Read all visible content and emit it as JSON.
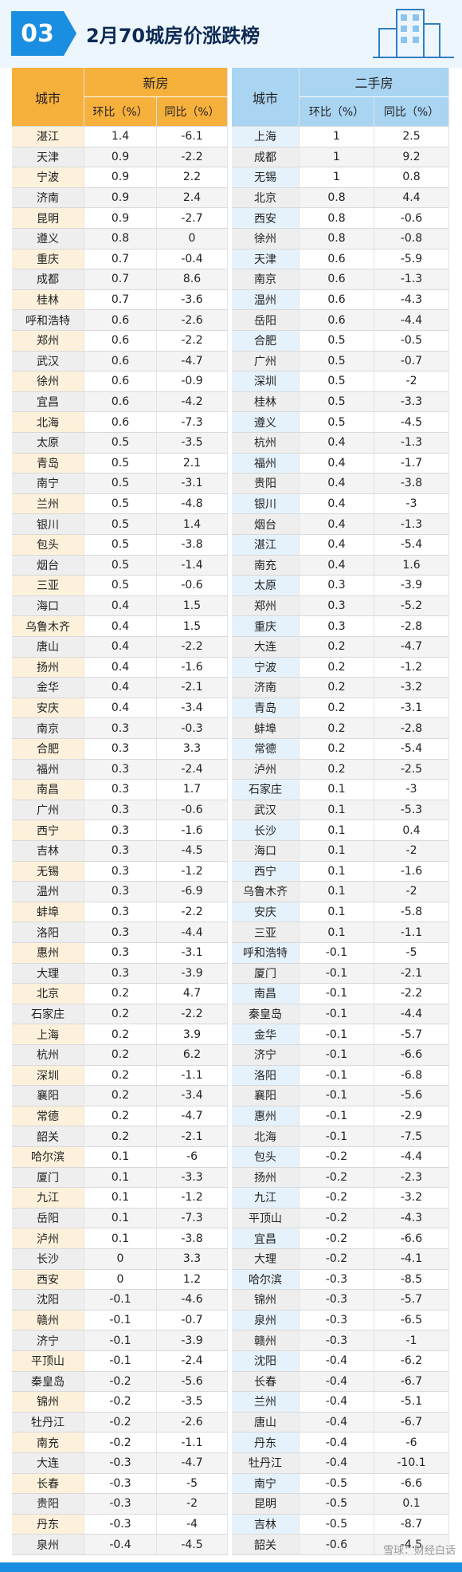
{
  "header": {
    "number": "03",
    "title": "2月70城房价涨跌榜"
  },
  "table": {
    "new_house": {
      "title": "新房",
      "city_header": "城市",
      "columns": [
        "环比（%）",
        "同比（%）"
      ],
      "rows": [
        [
          "湛江",
          1.4,
          -6.1
        ],
        [
          "天津",
          0.9,
          -2.2
        ],
        [
          "宁波",
          0.9,
          2.2
        ],
        [
          "济南",
          0.9,
          2.4
        ],
        [
          "昆明",
          0.9,
          -2.7
        ],
        [
          "遵义",
          0.8,
          0
        ],
        [
          "重庆",
          0.7,
          -0.4
        ],
        [
          "成都",
          0.7,
          8.6
        ],
        [
          "桂林",
          0.7,
          -3.6
        ],
        [
          "呼和浩特",
          0.6,
          -2.6
        ],
        [
          "郑州",
          0.6,
          -2.2
        ],
        [
          "武汉",
          0.6,
          -4.7
        ],
        [
          "徐州",
          0.6,
          -0.9
        ],
        [
          "宜昌",
          0.6,
          -4.2
        ],
        [
          "北海",
          0.6,
          -7.3
        ],
        [
          "太原",
          0.5,
          -3.5
        ],
        [
          "青岛",
          0.5,
          2.1
        ],
        [
          "南宁",
          0.5,
          -3.1
        ],
        [
          "兰州",
          0.5,
          -4.8
        ],
        [
          "银川",
          0.5,
          1.4
        ],
        [
          "包头",
          0.5,
          -3.8
        ],
        [
          "烟台",
          0.5,
          -1.4
        ],
        [
          "三亚",
          0.5,
          -0.6
        ],
        [
          "海口",
          0.4,
          1.5
        ],
        [
          "乌鲁木齐",
          0.4,
          1.5
        ],
        [
          "唐山",
          0.4,
          -2.2
        ],
        [
          "扬州",
          0.4,
          -1.6
        ],
        [
          "金华",
          0.4,
          -2.1
        ],
        [
          "安庆",
          0.4,
          -3.4
        ],
        [
          "南京",
          0.3,
          -0.3
        ],
        [
          "合肥",
          0.3,
          3.3
        ],
        [
          "福州",
          0.3,
          -2.4
        ],
        [
          "南昌",
          0.3,
          1.7
        ],
        [
          "广州",
          0.3,
          -0.6
        ],
        [
          "西宁",
          0.3,
          -1.6
        ],
        [
          "吉林",
          0.3,
          -4.5
        ],
        [
          "无锡",
          0.3,
          -1.2
        ],
        [
          "温州",
          0.3,
          -6.9
        ],
        [
          "蚌埠",
          0.3,
          -2.2
        ],
        [
          "洛阳",
          0.3,
          -4.4
        ],
        [
          "惠州",
          0.3,
          -3.1
        ],
        [
          "大理",
          0.3,
          -3.9
        ],
        [
          "北京",
          0.2,
          4.7
        ],
        [
          "石家庄",
          0.2,
          -2.2
        ],
        [
          "上海",
          0.2,
          3.9
        ],
        [
          "杭州",
          0.2,
          6.2
        ],
        [
          "深圳",
          0.2,
          -1.1
        ],
        [
          "襄阳",
          0.2,
          -3.4
        ],
        [
          "常德",
          0.2,
          -4.7
        ],
        [
          "韶关",
          0.2,
          -2.1
        ],
        [
          "哈尔滨",
          0.1,
          -6
        ],
        [
          "厦门",
          0.1,
          -3.3
        ],
        [
          "九江",
          0.1,
          -1.2
        ],
        [
          "岳阳",
          0.1,
          -7.3
        ],
        [
          "泸州",
          0.1,
          -3.8
        ],
        [
          "长沙",
          0,
          3.3
        ],
        [
          "西安",
          0,
          1.2
        ],
        [
          "沈阳",
          -0.1,
          -4.6
        ],
        [
          "赣州",
          -0.1,
          -0.7
        ],
        [
          "济宁",
          -0.1,
          -3.9
        ],
        [
          "平顶山",
          -0.1,
          -2.4
        ],
        [
          "秦皇岛",
          -0.2,
          -5.6
        ],
        [
          "锦州",
          -0.2,
          -3.5
        ],
        [
          "牡丹江",
          -0.2,
          -2.6
        ],
        [
          "南充",
          -0.2,
          -1.1
        ],
        [
          "大连",
          -0.3,
          -4.7
        ],
        [
          "长春",
          -0.3,
          -5
        ],
        [
          "贵阳",
          -0.3,
          -2
        ],
        [
          "丹东",
          -0.3,
          -4
        ],
        [
          "泉州",
          -0.4,
          -4.5
        ]
      ]
    },
    "second_hand": {
      "title": "二手房",
      "city_header": "城市",
      "columns": [
        "环比（%）",
        "同比（%）"
      ],
      "rows": [
        [
          "上海",
          1,
          2.5
        ],
        [
          "成都",
          1,
          9.2
        ],
        [
          "无锡",
          1,
          0.8
        ],
        [
          "北京",
          0.8,
          4.4
        ],
        [
          "西安",
          0.8,
          -0.6
        ],
        [
          "徐州",
          0.8,
          -0.8
        ],
        [
          "天津",
          0.6,
          -5.9
        ],
        [
          "南京",
          0.6,
          -1.3
        ],
        [
          "温州",
          0.6,
          -4.3
        ],
        [
          "岳阳",
          0.6,
          -4.4
        ],
        [
          "合肥",
          0.5,
          -0.5
        ],
        [
          "广州",
          0.5,
          -0.7
        ],
        [
          "深圳",
          0.5,
          -2
        ],
        [
          "桂林",
          0.5,
          -3.3
        ],
        [
          "遵义",
          0.5,
          -4.5
        ],
        [
          "杭州",
          0.4,
          -1.3
        ],
        [
          "福州",
          0.4,
          -1.7
        ],
        [
          "贵阳",
          0.4,
          -3.8
        ],
        [
          "银川",
          0.4,
          -3
        ],
        [
          "烟台",
          0.4,
          -1.3
        ],
        [
          "湛江",
          0.4,
          -5.4
        ],
        [
          "南充",
          0.4,
          1.6
        ],
        [
          "太原",
          0.3,
          -3.9
        ],
        [
          "郑州",
          0.3,
          -5.2
        ],
        [
          "重庆",
          0.3,
          -2.8
        ],
        [
          "大连",
          0.2,
          -4.7
        ],
        [
          "宁波",
          0.2,
          -1.2
        ],
        [
          "济南",
          0.2,
          -3.2
        ],
        [
          "青岛",
          0.2,
          -3.1
        ],
        [
          "蚌埠",
          0.2,
          -2.8
        ],
        [
          "常德",
          0.2,
          -5.4
        ],
        [
          "泸州",
          0.2,
          -2.5
        ],
        [
          "石家庄",
          0.1,
          -3
        ],
        [
          "武汉",
          0.1,
          -5.3
        ],
        [
          "长沙",
          0.1,
          0.4
        ],
        [
          "海口",
          0.1,
          -2
        ],
        [
          "西宁",
          0.1,
          -1.6
        ],
        [
          "乌鲁木齐",
          0.1,
          -2
        ],
        [
          "安庆",
          0.1,
          -5.8
        ],
        [
          "三亚",
          0.1,
          -1.1
        ],
        [
          "呼和浩特",
          -0.1,
          -5
        ],
        [
          "厦门",
          -0.1,
          -2.1
        ],
        [
          "南昌",
          -0.1,
          -2.2
        ],
        [
          "秦皇岛",
          -0.1,
          -4.4
        ],
        [
          "金华",
          -0.1,
          -5.7
        ],
        [
          "济宁",
          -0.1,
          -6.6
        ],
        [
          "洛阳",
          -0.1,
          -6.8
        ],
        [
          "襄阳",
          -0.1,
          -5.6
        ],
        [
          "惠州",
          -0.1,
          -2.9
        ],
        [
          "北海",
          -0.1,
          -7.5
        ],
        [
          "包头",
          -0.2,
          -4.4
        ],
        [
          "扬州",
          -0.2,
          -2.3
        ],
        [
          "九江",
          -0.2,
          -3.2
        ],
        [
          "平顶山",
          -0.2,
          -4.3
        ],
        [
          "宜昌",
          -0.2,
          -6.6
        ],
        [
          "大理",
          -0.2,
          -4.1
        ],
        [
          "哈尔滨",
          -0.3,
          -8.5
        ],
        [
          "锦州",
          -0.3,
          -5.7
        ],
        [
          "泉州",
          -0.3,
          -6.5
        ],
        [
          "赣州",
          -0.3,
          -1
        ],
        [
          "沈阳",
          -0.4,
          -6.2
        ],
        [
          "长春",
          -0.4,
          -6.7
        ],
        [
          "兰州",
          -0.4,
          -5.1
        ],
        [
          "唐山",
          -0.4,
          -6.7
        ],
        [
          "丹东",
          -0.4,
          -6
        ],
        [
          "牡丹江",
          -0.4,
          -10.1
        ],
        [
          "南宁",
          -0.5,
          -6.6
        ],
        [
          "昆明",
          -0.5,
          0.1
        ],
        [
          "吉林",
          -0.5,
          -8.7
        ],
        [
          "韶关",
          -0.6,
          -4.5
        ]
      ]
    }
  },
  "footer": {
    "watermark": "雪球：财经白话"
  }
}
